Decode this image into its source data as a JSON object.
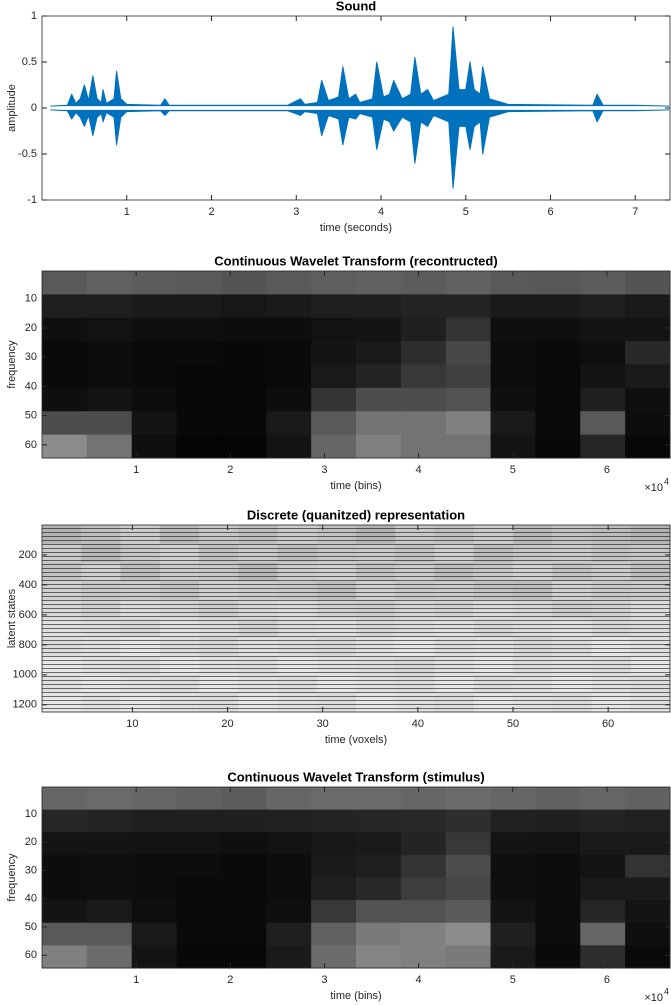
{
  "chart_data": [
    {
      "type": "envelope",
      "title": "Sound",
      "x_label": "time (seconds)",
      "y_label": "amplitude",
      "color": "#0072bd",
      "xlim": [
        0,
        7.41
      ],
      "ylim": [
        -1,
        1
      ],
      "xticks": [
        1,
        2,
        3,
        4,
        5,
        6,
        7
      ],
      "yticks": [
        -1,
        -0.5,
        0,
        0.5,
        1
      ],
      "x": [
        0.1,
        0.3,
        0.35,
        0.4,
        0.45,
        0.5,
        0.55,
        0.6,
        0.65,
        0.7,
        0.72,
        0.76,
        0.85,
        0.88,
        0.93,
        1.0,
        1.4,
        1.45,
        1.5,
        2.9,
        3.05,
        3.1,
        3.25,
        3.3,
        3.38,
        3.5,
        3.55,
        3.62,
        3.7,
        3.75,
        3.9,
        3.95,
        4.03,
        4.1,
        4.15,
        4.25,
        4.35,
        4.4,
        4.47,
        4.55,
        4.62,
        4.8,
        4.85,
        4.92,
        5.0,
        5.05,
        5.1,
        5.17,
        5.2,
        5.28,
        5.5,
        6.5,
        6.55,
        6.62,
        7.0,
        7.4
      ],
      "upper": [
        0.02,
        0.03,
        0.15,
        0.05,
        0.1,
        0.25,
        0.08,
        0.35,
        0.1,
        0.06,
        0.2,
        0.05,
        0.1,
        0.4,
        0.1,
        0.04,
        0.03,
        0.1,
        0.03,
        0.03,
        0.1,
        0.04,
        0.06,
        0.3,
        0.08,
        0.12,
        0.45,
        0.1,
        0.15,
        0.06,
        0.1,
        0.5,
        0.12,
        0.15,
        0.3,
        0.1,
        0.15,
        0.55,
        0.15,
        0.2,
        0.08,
        0.15,
        0.88,
        0.2,
        0.2,
        0.5,
        0.2,
        0.15,
        0.45,
        0.1,
        0.04,
        0.03,
        0.15,
        0.03,
        0.03,
        0.02
      ],
      "lower": [
        -0.02,
        -0.03,
        -0.12,
        -0.05,
        -0.1,
        -0.2,
        -0.08,
        -0.3,
        -0.1,
        -0.06,
        -0.15,
        -0.05,
        -0.1,
        -0.4,
        -0.1,
        -0.04,
        -0.03,
        -0.08,
        -0.03,
        -0.03,
        -0.08,
        -0.04,
        -0.06,
        -0.3,
        -0.08,
        -0.12,
        -0.4,
        -0.1,
        -0.12,
        -0.06,
        -0.1,
        -0.45,
        -0.12,
        -0.15,
        -0.25,
        -0.1,
        -0.15,
        -0.6,
        -0.15,
        -0.2,
        -0.08,
        -0.15,
        -0.87,
        -0.2,
        -0.2,
        -0.45,
        -0.2,
        -0.15,
        -0.5,
        -0.1,
        -0.04,
        -0.03,
        -0.15,
        -0.03,
        -0.03,
        -0.02
      ]
    },
    {
      "type": "heatmap",
      "title": "Continuous Wavelet Transform (recontructed)",
      "x_label": "time (bins)",
      "y_label": "frequency",
      "x_scale_label": "×10",
      "x_scale_exponent": "4",
      "ydir": "reverse",
      "xlim": [
        0,
        6.67
      ],
      "ylim": [
        0.5,
        64.5
      ],
      "xticks": [
        1,
        2,
        3,
        4,
        5,
        6
      ],
      "yticks": [
        10,
        20,
        30,
        40,
        50,
        60
      ],
      "values": [
        [
          0.35,
          0.38,
          0.36,
          0.35,
          0.33,
          0.35,
          0.37,
          0.38,
          0.36,
          0.38,
          0.35,
          0.34,
          0.36,
          0.33
        ],
        [
          0.12,
          0.12,
          0.1,
          0.1,
          0.09,
          0.1,
          0.12,
          0.12,
          0.14,
          0.14,
          0.1,
          0.1,
          0.12,
          0.1
        ],
        [
          0.06,
          0.07,
          0.06,
          0.06,
          0.05,
          0.05,
          0.07,
          0.08,
          0.12,
          0.2,
          0.06,
          0.06,
          0.08,
          0.08
        ],
        [
          0.04,
          0.05,
          0.04,
          0.04,
          0.03,
          0.04,
          0.08,
          0.1,
          0.18,
          0.28,
          0.05,
          0.04,
          0.06,
          0.16
        ],
        [
          0.04,
          0.05,
          0.04,
          0.03,
          0.03,
          0.04,
          0.1,
          0.14,
          0.22,
          0.25,
          0.05,
          0.04,
          0.08,
          0.1
        ],
        [
          0.06,
          0.08,
          0.05,
          0.03,
          0.03,
          0.05,
          0.2,
          0.3,
          0.3,
          0.32,
          0.06,
          0.04,
          0.12,
          0.06
        ],
        [
          0.3,
          0.3,
          0.08,
          0.03,
          0.03,
          0.1,
          0.35,
          0.45,
          0.45,
          0.5,
          0.1,
          0.04,
          0.35,
          0.05
        ],
        [
          0.55,
          0.45,
          0.06,
          0.02,
          0.02,
          0.08,
          0.4,
          0.5,
          0.45,
          0.45,
          0.08,
          0.03,
          0.15,
          0.03
        ]
      ]
    },
    {
      "type": "heatmap",
      "title": "Discrete (quanitzed) representation",
      "x_label": "time (voxels)",
      "y_label": "latent states",
      "ydir": "reverse",
      "xlim": [
        0.5,
        66.5
      ],
      "ylim": [
        0.5,
        1248
      ],
      "xticks": [
        10,
        20,
        30,
        40,
        50,
        60
      ],
      "yticks": [
        200,
        400,
        600,
        800,
        1000,
        1200
      ],
      "values": [
        [
          0.7,
          0.75,
          0.8,
          0.72,
          0.78,
          0.74,
          0.8,
          0.76,
          0.7,
          0.78,
          0.75,
          0.8,
          0.72,
          0.77,
          0.74,
          0.7
        ],
        [
          0.8,
          0.72,
          0.78,
          0.82,
          0.75,
          0.8,
          0.74,
          0.78,
          0.8,
          0.76,
          0.82,
          0.74,
          0.78,
          0.8,
          0.76,
          0.78
        ],
        [
          0.76,
          0.82,
          0.74,
          0.8,
          0.78,
          0.72,
          0.8,
          0.82,
          0.76,
          0.8,
          0.74,
          0.78,
          0.82,
          0.76,
          0.8,
          0.74
        ],
        [
          0.82,
          0.78,
          0.8,
          0.76,
          0.82,
          0.8,
          0.78,
          0.74,
          0.82,
          0.78,
          0.8,
          0.76,
          0.74,
          0.82,
          0.78,
          0.8
        ],
        [
          0.85,
          0.82,
          0.86,
          0.84,
          0.8,
          0.84,
          0.86,
          0.82,
          0.8,
          0.84,
          0.82,
          0.86,
          0.84,
          0.8,
          0.82,
          0.86
        ],
        [
          0.88,
          0.86,
          0.84,
          0.88,
          0.86,
          0.82,
          0.86,
          0.88,
          0.84,
          0.86,
          0.88,
          0.84,
          0.86,
          0.88,
          0.84,
          0.86
        ],
        [
          0.86,
          0.88,
          0.9,
          0.86,
          0.84,
          0.88,
          0.86,
          0.84,
          0.88,
          0.9,
          0.86,
          0.88,
          0.84,
          0.86,
          0.9,
          0.88
        ],
        [
          0.9,
          0.88,
          0.86,
          0.9,
          0.88,
          0.86,
          0.9,
          0.88,
          0.86,
          0.84,
          0.88,
          0.9,
          0.86,
          0.88,
          0.86,
          0.9
        ],
        [
          0.88,
          0.9,
          0.88,
          0.86,
          0.9,
          0.88,
          0.86,
          0.9,
          0.88,
          0.86,
          0.9,
          0.86,
          0.88,
          0.9,
          0.88,
          0.86
        ],
        [
          0.9,
          0.88,
          0.9,
          0.88,
          0.86,
          0.9,
          0.88,
          0.86,
          0.9,
          0.88,
          0.86,
          0.9,
          0.88,
          0.86,
          0.9,
          0.88
        ]
      ]
    },
    {
      "type": "heatmap",
      "title": "Continuous Wavelet Transform (stimulus)",
      "x_label": "time (bins)",
      "y_label": "frequency",
      "x_scale_label": "×10",
      "x_scale_exponent": "4",
      "ydir": "reverse",
      "xlim": [
        0,
        6.67
      ],
      "ylim": [
        0.5,
        64.5
      ],
      "xticks": [
        1,
        2,
        3,
        4,
        5,
        6
      ],
      "yticks": [
        10,
        20,
        30,
        40,
        50,
        60
      ],
      "values": [
        [
          0.4,
          0.42,
          0.4,
          0.38,
          0.36,
          0.4,
          0.42,
          0.42,
          0.4,
          0.42,
          0.4,
          0.38,
          0.4,
          0.38
        ],
        [
          0.15,
          0.14,
          0.12,
          0.12,
          0.12,
          0.13,
          0.14,
          0.15,
          0.16,
          0.18,
          0.13,
          0.12,
          0.14,
          0.13
        ],
        [
          0.08,
          0.08,
          0.07,
          0.07,
          0.06,
          0.07,
          0.09,
          0.1,
          0.14,
          0.22,
          0.08,
          0.07,
          0.1,
          0.1
        ],
        [
          0.05,
          0.06,
          0.05,
          0.05,
          0.04,
          0.05,
          0.1,
          0.12,
          0.2,
          0.3,
          0.06,
          0.05,
          0.08,
          0.2
        ],
        [
          0.05,
          0.06,
          0.05,
          0.04,
          0.04,
          0.05,
          0.12,
          0.16,
          0.24,
          0.28,
          0.06,
          0.05,
          0.1,
          0.1
        ],
        [
          0.08,
          0.1,
          0.06,
          0.04,
          0.04,
          0.06,
          0.22,
          0.32,
          0.32,
          0.35,
          0.08,
          0.05,
          0.15,
          0.08
        ],
        [
          0.35,
          0.35,
          0.1,
          0.04,
          0.04,
          0.12,
          0.38,
          0.48,
          0.5,
          0.55,
          0.12,
          0.05,
          0.4,
          0.06
        ],
        [
          0.5,
          0.42,
          0.08,
          0.03,
          0.03,
          0.1,
          0.42,
          0.52,
          0.5,
          0.48,
          0.1,
          0.04,
          0.18,
          0.04
        ]
      ]
    }
  ]
}
